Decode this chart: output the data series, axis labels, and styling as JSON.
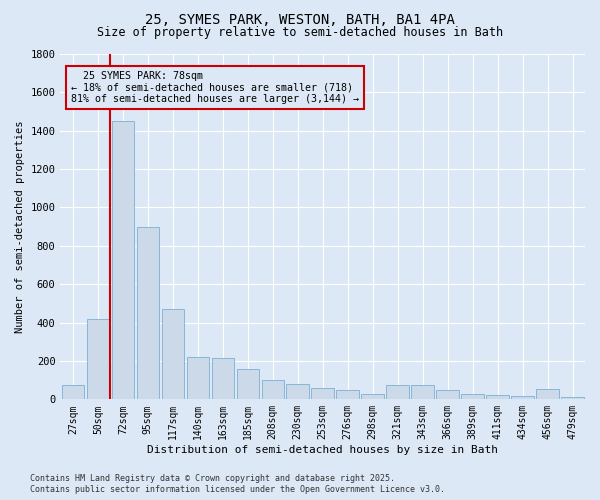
{
  "title_line1": "25, SYMES PARK, WESTON, BATH, BA1 4PA",
  "title_line2": "Size of property relative to semi-detached houses in Bath",
  "xlabel": "Distribution of semi-detached houses by size in Bath",
  "ylabel": "Number of semi-detached properties",
  "bar_labels": [
    "27sqm",
    "50sqm",
    "72sqm",
    "95sqm",
    "117sqm",
    "140sqm",
    "163sqm",
    "185sqm",
    "208sqm",
    "230sqm",
    "253sqm",
    "276sqm",
    "298sqm",
    "321sqm",
    "343sqm",
    "366sqm",
    "389sqm",
    "411sqm",
    "434sqm",
    "456sqm",
    "479sqm"
  ],
  "bar_values": [
    75,
    420,
    1450,
    900,
    470,
    220,
    215,
    160,
    100,
    80,
    60,
    50,
    30,
    75,
    75,
    50,
    30,
    20,
    15,
    55,
    10
  ],
  "bar_color": "#ccd9e8",
  "bar_edge_color": "#7bafd4",
  "background_color": "#dce8f5",
  "grid_color": "#ffffff",
  "property_label": "25 SYMES PARK: 78sqm",
  "pct_smaller": 18,
  "pct_larger": 81,
  "count_smaller": 718,
  "count_larger": 3144,
  "vline_color": "#cc0000",
  "annotation_box_color": "#cc0000",
  "ylim": [
    0,
    1800
  ],
  "yticks": [
    0,
    200,
    400,
    600,
    800,
    1000,
    1200,
    1400,
    1600,
    1800
  ],
  "footnote_line1": "Contains HM Land Registry data © Crown copyright and database right 2025.",
  "footnote_line2": "Contains public sector information licensed under the Open Government Licence v3.0."
}
